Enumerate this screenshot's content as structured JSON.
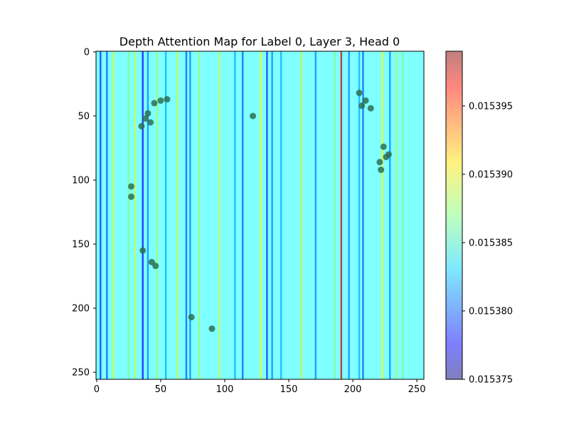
{
  "chart_data": {
    "type": "heatmap",
    "title": "Depth Attention Map for Label 0, Layer 3, Head 0",
    "xlabel": "",
    "ylabel": "",
    "xlim": [
      0,
      255
    ],
    "ylim": [
      255,
      0
    ],
    "x_ticks": [
      0,
      50,
      100,
      150,
      200,
      250
    ],
    "y_ticks": [
      0,
      50,
      100,
      150,
      200,
      250
    ],
    "x_tick_labels": [
      "0",
      "50",
      "100",
      "150",
      "200",
      "250"
    ],
    "y_tick_labels": [
      "0",
      "50",
      "100",
      "150",
      "200",
      "250"
    ],
    "colormap": "jet",
    "alpha": 0.5,
    "colorbar": {
      "vmin": 0.015375,
      "vmax": 0.015399,
      "ticks": [
        0.015375,
        0.01538,
        0.015385,
        0.01539,
        0.015395
      ],
      "tick_labels": [
        "0.015375",
        "0.015380",
        "0.015385",
        "0.015390",
        "0.015395"
      ]
    },
    "base_value": 0.015384,
    "stripes": [
      {
        "x": 3,
        "value": 0.015379
      },
      {
        "x": 8,
        "value": 0.01538
      },
      {
        "x": 13,
        "value": 0.015389
      },
      {
        "x": 25,
        "value": 0.015387
      },
      {
        "x": 30,
        "value": 0.015389
      },
      {
        "x": 36,
        "value": 0.015378
      },
      {
        "x": 40,
        "value": 0.015381
      },
      {
        "x": 47,
        "value": 0.015388
      },
      {
        "x": 54,
        "value": 0.015382
      },
      {
        "x": 63,
        "value": 0.015389
      },
      {
        "x": 70,
        "value": 0.01538
      },
      {
        "x": 73,
        "value": 0.015381
      },
      {
        "x": 80,
        "value": 0.015388
      },
      {
        "x": 96,
        "value": 0.015389
      },
      {
        "x": 108,
        "value": 0.015382
      },
      {
        "x": 114,
        "value": 0.01538
      },
      {
        "x": 128,
        "value": 0.01539
      },
      {
        "x": 133,
        "value": 0.015379
      },
      {
        "x": 137,
        "value": 0.015381
      },
      {
        "x": 144,
        "value": 0.015382
      },
      {
        "x": 160,
        "value": 0.015389
      },
      {
        "x": 171,
        "value": 0.015381
      },
      {
        "x": 186,
        "value": 0.015387
      },
      {
        "x": 191,
        "value": 0.015397
      },
      {
        "x": 197,
        "value": 0.015381
      },
      {
        "x": 205,
        "value": 0.015382
      },
      {
        "x": 208,
        "value": 0.01538
      },
      {
        "x": 223,
        "value": 0.01539
      },
      {
        "x": 229,
        "value": 0.015381
      },
      {
        "x": 234,
        "value": 0.015388
      },
      {
        "x": 239,
        "value": 0.015387
      }
    ],
    "image_overlay_blobs": [
      {
        "x": 45,
        "y": 40
      },
      {
        "x": 50,
        "y": 38
      },
      {
        "x": 55,
        "y": 37
      },
      {
        "x": 40,
        "y": 48
      },
      {
        "x": 38,
        "y": 52
      },
      {
        "x": 42,
        "y": 55
      },
      {
        "x": 35,
        "y": 58
      },
      {
        "x": 122,
        "y": 50
      },
      {
        "x": 205,
        "y": 32
      },
      {
        "x": 210,
        "y": 38
      },
      {
        "x": 214,
        "y": 44
      },
      {
        "x": 207,
        "y": 42
      },
      {
        "x": 224,
        "y": 74
      },
      {
        "x": 226,
        "y": 82
      },
      {
        "x": 221,
        "y": 86
      },
      {
        "x": 222,
        "y": 92
      },
      {
        "x": 228,
        "y": 80
      },
      {
        "x": 27,
        "y": 105
      },
      {
        "x": 27,
        "y": 113
      },
      {
        "x": 36,
        "y": 155
      },
      {
        "x": 43,
        "y": 164
      },
      {
        "x": 46,
        "y": 167
      },
      {
        "x": 74,
        "y": 207
      },
      {
        "x": 90,
        "y": 216
      }
    ]
  }
}
